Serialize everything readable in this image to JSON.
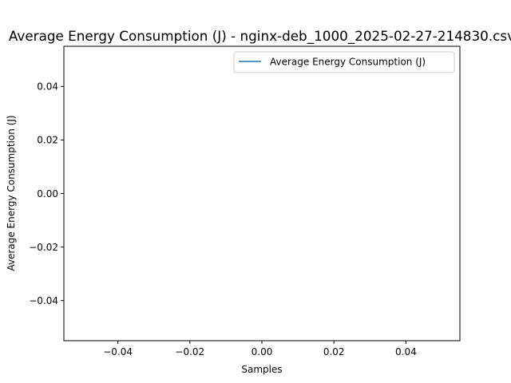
{
  "chart_data": {
    "type": "line",
    "title": "Average Energy Consumption (J) - nginx-deb_1000_2025-02-27-214830.csv",
    "xlabel": "Samples",
    "ylabel": "Average Energy Consumption (J)",
    "xlim": [
      -0.055,
      0.055
    ],
    "ylim": [
      -0.055,
      0.055
    ],
    "xticks": [
      -0.04,
      -0.02,
      0.0,
      0.02,
      0.04
    ],
    "yticks": [
      -0.04,
      -0.02,
      0.0,
      0.02,
      0.04
    ],
    "xtick_labels": [
      "−0.04",
      "−0.02",
      "0.00",
      "0.02",
      "0.04"
    ],
    "ytick_labels": [
      "−0.04",
      "−0.02",
      "0.00",
      "0.02",
      "0.04"
    ],
    "grid": false,
    "legend_position": "top-right",
    "series": [
      {
        "name": "Average Energy Consumption (J)",
        "color": "#1f77b4",
        "x": [],
        "y": []
      }
    ]
  }
}
